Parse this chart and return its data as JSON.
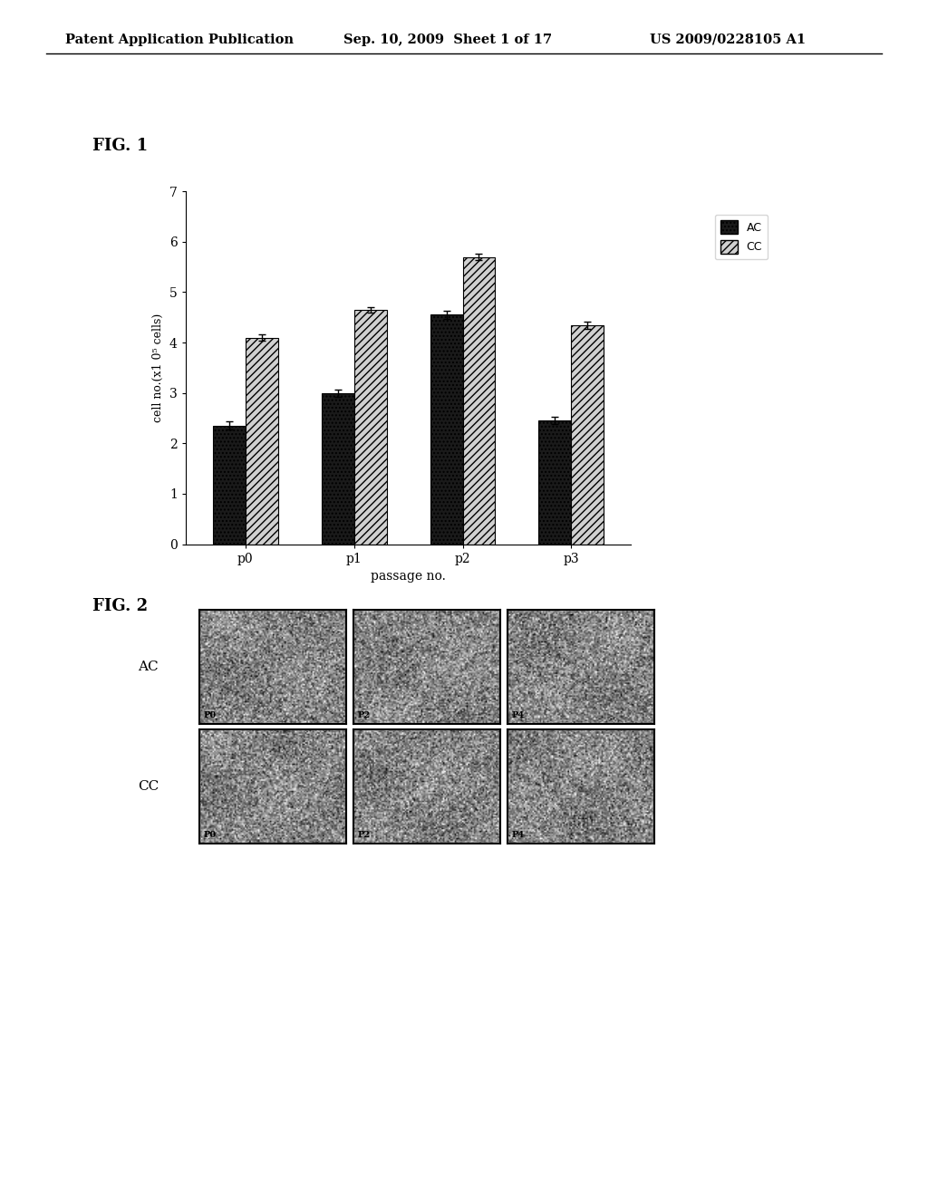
{
  "header_left": "Patent Application Publication",
  "header_mid": "Sep. 10, 2009  Sheet 1 of 17",
  "header_right": "US 2009/0228105 A1",
  "fig1_label": "FIG. 1",
  "fig2_label": "FIG. 2",
  "categories": [
    "p0",
    "p1",
    "p2",
    "p3"
  ],
  "AC_values": [
    2.35,
    3.0,
    4.55,
    2.45
  ],
  "CC_values": [
    4.1,
    4.65,
    5.7,
    4.35
  ],
  "AC_errors": [
    0.08,
    0.07,
    0.08,
    0.07
  ],
  "CC_errors": [
    0.07,
    0.06,
    0.07,
    0.07
  ],
  "ylabel": "cell no.(x1 0⁵ cells)",
  "xlabel": "passage no.",
  "ylim": [
    0,
    7
  ],
  "yticks": [
    0,
    1,
    2,
    3,
    4,
    5,
    6,
    7
  ],
  "legend_labels": [
    "AC",
    "CC"
  ],
  "ac_color": "#1a1a1a",
  "cc_hatch": "////",
  "fig2_row_labels": [
    "AC",
    "CC"
  ],
  "fig2_col_labels": [
    "P0",
    "P2",
    "P4"
  ],
  "background_color": "#ffffff"
}
